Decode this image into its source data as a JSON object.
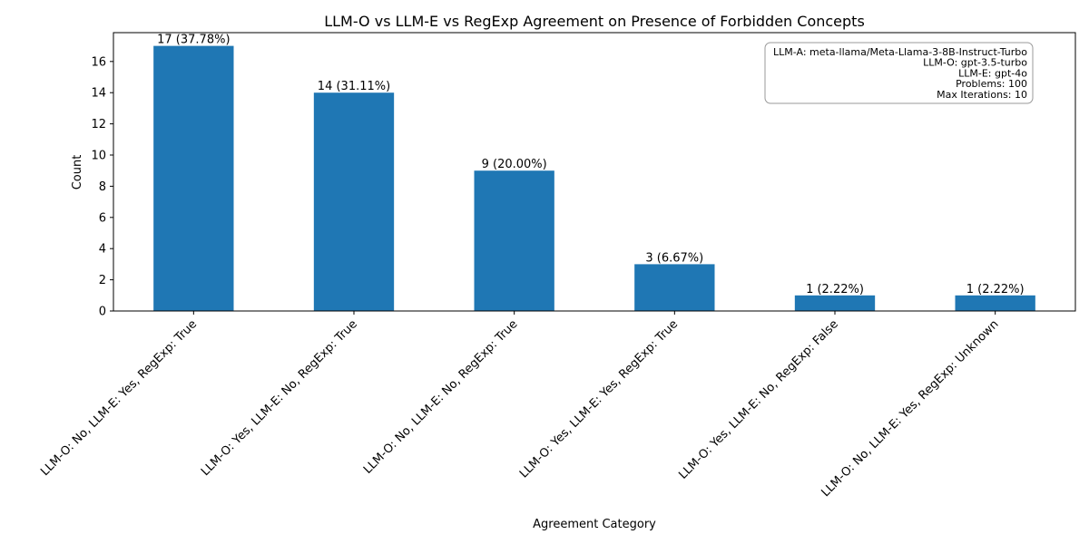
{
  "chart_data": {
    "type": "bar",
    "title": "LLM-O vs LLM-E vs RegExp Agreement on Presence of Forbidden Concepts",
    "xlabel": "Agreement Category",
    "ylabel": "Count",
    "categories": [
      "LLM-O: No, LLM-E: Yes, RegExp: True",
      "LLM-O: Yes, LLM-E: No, RegExp: True",
      "LLM-O: No, LLM-E: No, RegExp: True",
      "LLM-O: Yes, LLM-E: Yes, RegExp: True",
      "LLM-O: Yes, LLM-E: No, RegExp: False",
      "LLM-O: No, LLM-E: Yes, RegExp: Unknown"
    ],
    "values": [
      17,
      14,
      9,
      3,
      1,
      1
    ],
    "data_labels": [
      "17 (37.78%)",
      "14 (31.11%)",
      "9 (20.00%)",
      "3 (6.67%)",
      "1 (2.22%)",
      "1 (2.22%)"
    ],
    "ylim": [
      0,
      17.85
    ],
    "yticks": [
      0,
      2,
      4,
      6,
      8,
      10,
      12,
      14,
      16
    ],
    "grid": false,
    "bar_color": "#1f77b4",
    "info_box": {
      "placement": "top-right",
      "lines": [
        "LLM-A: meta-llama/Meta-Llama-3-8B-Instruct-Turbo",
        "LLM-O: gpt-3.5-turbo",
        "LLM-E: gpt-4o",
        "Problems: 100",
        "Max Iterations: 10"
      ]
    }
  }
}
